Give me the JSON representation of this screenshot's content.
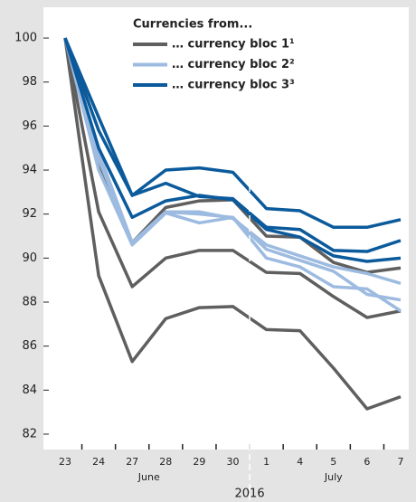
{
  "chart_data": {
    "type": "line",
    "legend_title": "Currencies from...",
    "categories": [
      "23",
      "24",
      "27",
      "28",
      "29",
      "30",
      "1",
      "4",
      "5",
      "6",
      "7"
    ],
    "months": [
      {
        "label": "June",
        "span": 6
      },
      {
        "label": "July",
        "span": 5
      }
    ],
    "year": "2016",
    "series": [
      {
        "name": "… currency bloc 1¹",
        "color": "#5f5f5f",
        "values": [
          [
            100,
            92.1,
            88.7,
            90.0,
            90.35,
            90.35,
            89.35,
            89.3,
            88.25,
            87.3,
            87.6
          ],
          [
            100,
            89.2,
            85.3,
            87.25,
            87.75,
            87.8,
            86.75,
            86.7,
            85.0,
            83.15,
            83.7
          ],
          [
            100,
            94.3,
            90.7,
            92.3,
            92.6,
            92.65,
            91.0,
            90.95,
            89.8,
            89.35,
            89.55
          ]
        ]
      },
      {
        "name": "… currency bloc 2²",
        "color": "#9dbbe0",
        "values": [
          [
            100,
            94.0,
            90.6,
            92.05,
            91.6,
            91.85,
            90.0,
            89.6,
            88.7,
            88.6,
            87.6
          ],
          [
            100,
            94.5,
            90.7,
            92.1,
            92.0,
            91.85,
            90.4,
            89.9,
            89.4,
            88.35,
            88.1
          ],
          [
            100,
            94.8,
            90.7,
            92.1,
            92.1,
            91.8,
            90.6,
            90.1,
            89.6,
            89.3,
            88.85
          ]
        ]
      },
      {
        "name": "… currency bloc 3³",
        "color": "#0b5a9c",
        "values": [
          [
            100,
            96.4,
            92.85,
            94.0,
            94.1,
            93.9,
            92.25,
            92.15,
            91.4,
            91.4,
            91.75
          ],
          [
            100,
            95.8,
            92.85,
            93.4,
            92.8,
            92.7,
            91.4,
            91.3,
            90.35,
            90.3,
            90.8
          ],
          [
            100,
            95.0,
            91.85,
            92.6,
            92.85,
            92.65,
            91.3,
            90.95,
            90.1,
            89.85,
            90.0
          ]
        ]
      }
    ],
    "ylim": [
      81.3,
      101.4
    ],
    "yticks": [
      82,
      84,
      86,
      88,
      90,
      92,
      94,
      96,
      98,
      100
    ]
  }
}
